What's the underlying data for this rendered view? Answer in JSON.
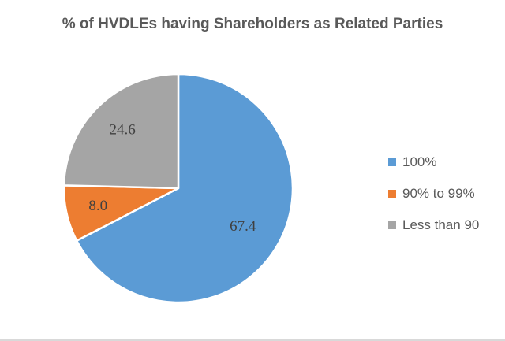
{
  "chart_data": {
    "type": "pie",
    "title": "% of HVDLEs having Shareholders as Related Parties",
    "categories": [
      "100%",
      "90% to 99%",
      "Less than 90"
    ],
    "values": [
      67.4,
      8.0,
      24.6
    ],
    "data_labels": [
      "67.4",
      "8.0",
      "24.6"
    ],
    "colors": [
      "#5b9bd5",
      "#ed7d31",
      "#a5a5a5"
    ],
    "legend_position": "right"
  }
}
